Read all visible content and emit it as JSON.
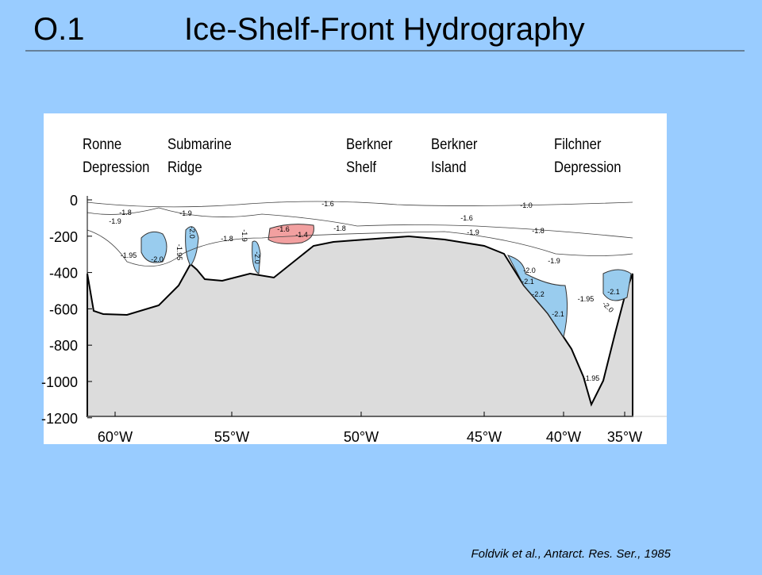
{
  "header": {
    "number": "O.1",
    "title": "Ice-Shelf-Front Hydrography"
  },
  "figure": {
    "regions": [
      [
        "Ronne",
        "Depression"
      ],
      [
        "Submarine",
        "Ridge"
      ],
      [
        "Berkner",
        "Shelf"
      ],
      [
        "Berkner",
        "Island"
      ],
      [
        "Filchner",
        "Depression"
      ]
    ],
    "y_ticks": [
      "0",
      "-200",
      "-400",
      "-600",
      "-800",
      "-1000",
      "-1200"
    ],
    "x_ticks": [
      "60°W",
      "55°W",
      "50°W",
      "45°W",
      "40°W",
      "35°W"
    ],
    "contour_labels": [
      "-1.8",
      "-1.9",
      "-1.9",
      "-2.0",
      "-1.95",
      "-1.8",
      "-1.9",
      "-2.0",
      "-1.6",
      "-1.4",
      "-1.6",
      "-1.8",
      "-1.6",
      "-1.9",
      "-1.0",
      "-1.8",
      "-1.9",
      "-1.95",
      "-2.0",
      "-2.0",
      "-2.1",
      "-2.2",
      "-2.1",
      "-1.95",
      "-2.1",
      "-2.0",
      "-1.95"
    ]
  },
  "citation": "Foldvik et al., Antarct. Res. Ser., 1985"
}
